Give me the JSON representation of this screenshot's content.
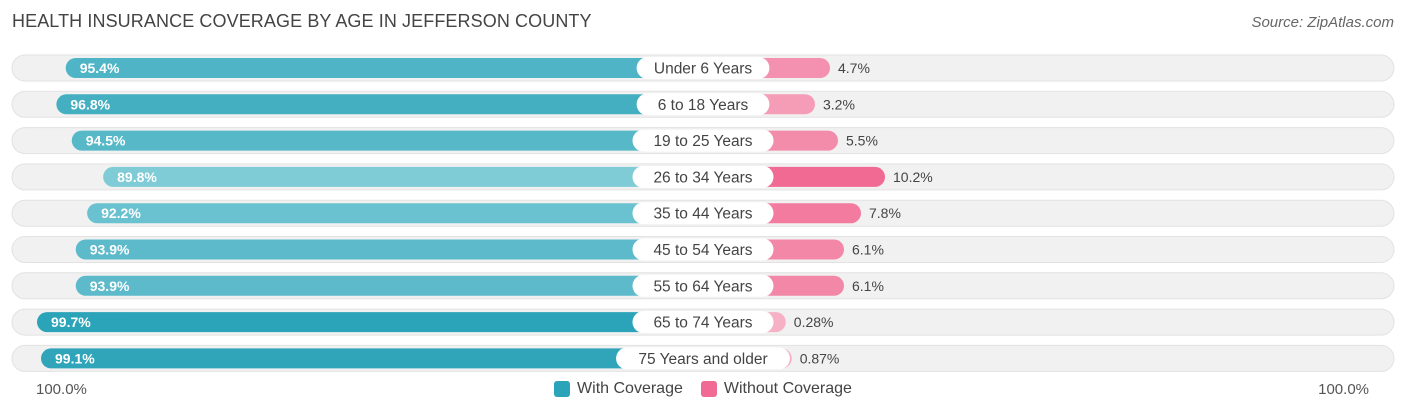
{
  "title": "HEALTH INSURANCE COVERAGE BY AGE IN JEFFERSON COUNTY",
  "source": "Source: ZipAtlas.com",
  "axis": {
    "left_label": "100.0%",
    "right_label": "100.0%"
  },
  "legend": {
    "with_label": "With Coverage",
    "without_label": "Without Coverage"
  },
  "colors": {
    "with_strong": "#2ba3b8",
    "with_light": "#8ed2dc",
    "without_strong": "#f06a93",
    "without_light": "#f7b3c8",
    "track": "#f1f1f1",
    "track_border": "#e2e2e2"
  },
  "chart_data": {
    "type": "bar",
    "orientation": "horizontal-diverging",
    "title": "HEALTH INSURANCE COVERAGE BY AGE IN JEFFERSON COUNTY",
    "categories": [
      "Under 6 Years",
      "6 to 18 Years",
      "19 to 25 Years",
      "26 to 34 Years",
      "35 to 44 Years",
      "45 to 54 Years",
      "55 to 64 Years",
      "65 to 74 Years",
      "75 Years and older"
    ],
    "series": [
      {
        "name": "With Coverage",
        "values": [
          95.4,
          96.8,
          94.5,
          89.8,
          92.2,
          93.9,
          93.9,
          99.7,
          99.1
        ],
        "labels": [
          "95.4%",
          "96.8%",
          "94.5%",
          "89.8%",
          "92.2%",
          "93.9%",
          "93.9%",
          "99.7%",
          "99.1%"
        ]
      },
      {
        "name": "Without Coverage",
        "values": [
          4.7,
          3.2,
          5.5,
          10.2,
          7.8,
          6.1,
          6.1,
          0.28,
          0.87
        ],
        "labels": [
          "4.7%",
          "3.2%",
          "5.5%",
          "10.2%",
          "7.8%",
          "6.1%",
          "6.1%",
          "0.28%",
          "0.87%"
        ]
      }
    ],
    "xlim": [
      0,
      100
    ],
    "xlabel_left": "100.0%",
    "xlabel_right": "100.0%",
    "legend_position": "bottom-center"
  }
}
